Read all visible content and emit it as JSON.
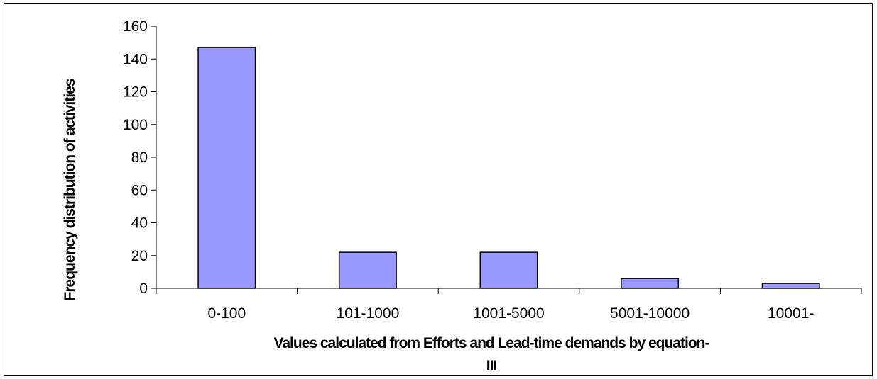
{
  "chart_data": {
    "type": "bar",
    "title": "",
    "categories": [
      "0-100",
      "101-1000",
      "1001-5000",
      "5001-10000",
      "10001-"
    ],
    "values": [
      147,
      22,
      22,
      6,
      3
    ],
    "xlabel_line1": "Values calculated from Efforts and Lead-time demands by equation-",
    "xlabel_line2": "III",
    "ylabel": "Frequency distribution of activities",
    "ylim": [
      0,
      160
    ],
    "yticks": [
      0,
      20,
      40,
      60,
      80,
      100,
      120,
      140,
      160
    ],
    "grid": false,
    "legend": "none",
    "bar_color": "#9999FF",
    "bar_edge_color": "#000000"
  }
}
